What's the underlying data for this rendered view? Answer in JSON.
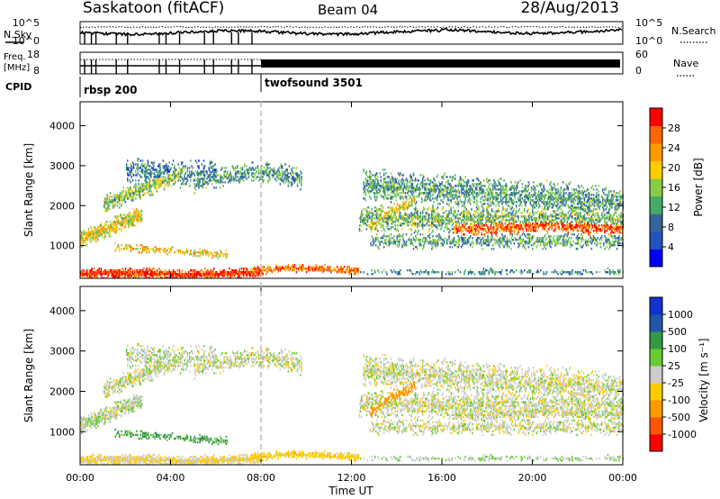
{
  "header": {
    "site": "Saskatoon (fitACF)",
    "beam": "Beam 04",
    "date": "28/Aug/2013"
  },
  "summary_panel": {
    "nsky_label": "N.Sky",
    "nsearch_label": "N.Search",
    "freq_label_top": "Freq.",
    "freq_label_unit": "[MHz]",
    "nave_label": "Nave",
    "cpid_label": "CPID",
    "noise_ticks": [
      "10^5",
      "10^0"
    ],
    "freq_ticks": [
      "18",
      "8"
    ],
    "nave_ticks": [
      "60",
      "0"
    ],
    "cpid_segments": [
      {
        "name": "rbsp 200",
        "start": 0,
        "end": 8
      },
      {
        "name": "twofsound 3501",
        "start": 8,
        "end": 24
      }
    ]
  },
  "colors": {
    "power": [
      "#0000ff",
      "#2255bb",
      "#336699",
      "#44aa66",
      "#88cc44",
      "#ffcc00",
      "#ff9900",
      "#ff6600",
      "#ff0000"
    ],
    "velocity": [
      "#ff0000",
      "#ff5500",
      "#ff9900",
      "#ffcc00",
      "#cccccc",
      "#66cc33",
      "#339944",
      "#2255aa",
      "#1133cc"
    ]
  },
  "chart_data": [
    {
      "type": "heatmap",
      "name": "power",
      "ylabel": "Slant Range [km]",
      "yticks": [
        1000,
        2000,
        3000,
        4000
      ],
      "ylim": [
        180,
        4600
      ],
      "xlim": [
        0,
        24
      ],
      "colorbar_label": "Power [dB]",
      "colorbar_ticks": [
        4,
        8,
        12,
        16,
        20,
        24,
        28
      ],
      "colorbar_range": [
        0,
        32
      ]
    },
    {
      "type": "heatmap",
      "name": "velocity",
      "ylabel": "Slant Range [km]",
      "yticks": [
        1000,
        2000,
        3000,
        4000
      ],
      "ylim": [
        180,
        4600
      ],
      "xlim": [
        0,
        24
      ],
      "colorbar_label": "Velocity [m s⁻¹]",
      "colorbar_ticks": [
        "-1000",
        "-500",
        "-100",
        "-25",
        "25",
        "100",
        "500",
        "1000"
      ]
    }
  ],
  "xaxis": {
    "label": "Time UT",
    "ticks": [
      "00:00",
      "04:00",
      "08:00",
      "12:00",
      "16:00",
      "20:00",
      "00:00"
    ],
    "tick_hours": [
      0,
      4,
      8,
      12,
      16,
      20,
      24
    ]
  }
}
